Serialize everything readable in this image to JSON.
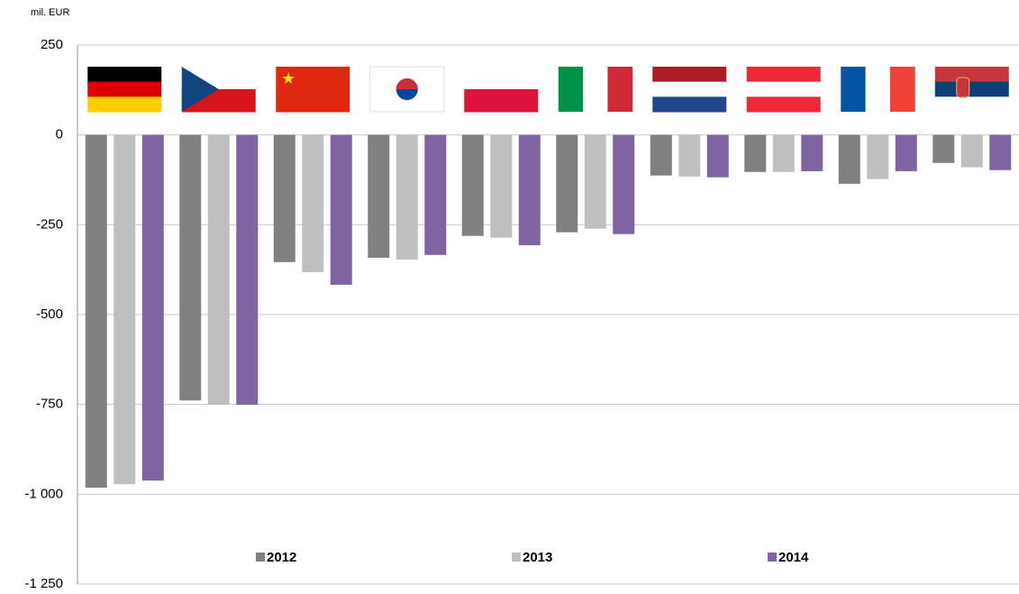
{
  "chart_data": {
    "type": "bar",
    "y_axis_label": "mil. EUR",
    "categories": [
      null,
      null,
      null,
      null,
      null,
      null,
      null,
      null,
      null,
      null
    ],
    "series": [
      {
        "name": "2012",
        "color": "#808080",
        "values": [
          -982,
          -739,
          -354,
          -342,
          -281,
          -271,
          -113,
          -103,
          -136,
          -78
        ]
      },
      {
        "name": "2013",
        "color": "#bfbfbf",
        "values": [
          -972,
          -751,
          -382,
          -347,
          -286,
          -261,
          -116,
          -103,
          -123,
          -90
        ]
      },
      {
        "name": "2014",
        "color": "#8064a2",
        "values": [
          -962,
          -751,
          -417,
          -334,
          -307,
          -276,
          -118,
          -101,
          -101,
          -98
        ]
      }
    ],
    "ylim": [
      -1250,
      250
    ],
    "yticks": [
      250,
      0,
      -250,
      -500,
      -750,
      {
        "value": -1000,
        "label": "-1 000"
      },
      {
        "value": -1250,
        "label": "-1 250"
      }
    ],
    "grid": true,
    "legend": "bottom"
  }
}
